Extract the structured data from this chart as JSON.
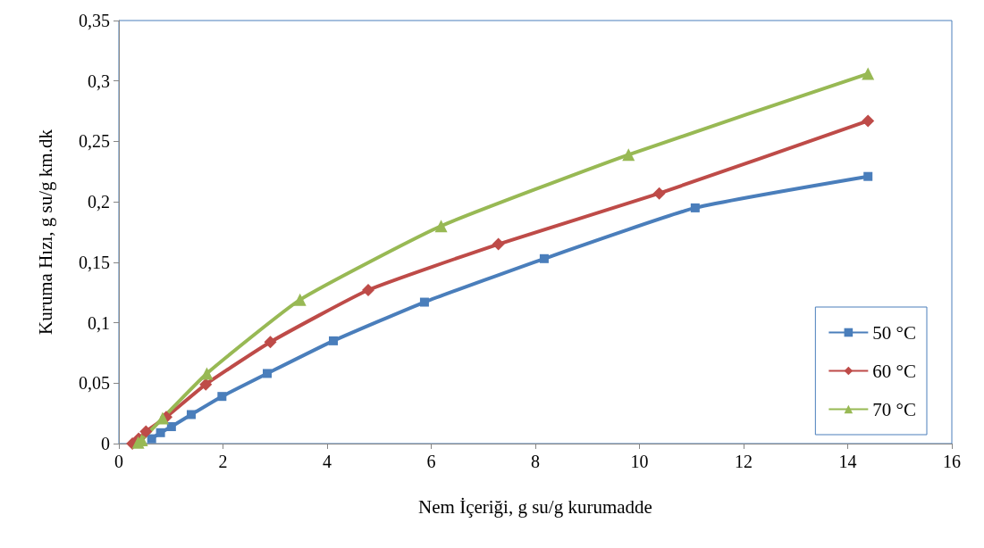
{
  "chart_data": {
    "type": "line",
    "xlabel": "Nem İçeriği, g su/g kurumadde",
    "ylabel": "Kuruma Hızı, g su/g km.dk",
    "xlim": [
      0,
      16
    ],
    "xticks": [
      0,
      2,
      4,
      6,
      8,
      10,
      12,
      14,
      16
    ],
    "ylim": [
      0,
      0.35
    ],
    "yticks": [
      {
        "value": 0,
        "label": "0"
      },
      {
        "value": 0.05,
        "label": "0,05"
      },
      {
        "value": 0.1,
        "label": "0,1"
      },
      {
        "value": 0.15,
        "label": "0,15"
      },
      {
        "value": 0.2,
        "label": "0,2"
      },
      {
        "value": 0.25,
        "label": "0,25"
      },
      {
        "value": 0.3,
        "label": "0,3"
      },
      {
        "value": 0.35,
        "label": "0,35"
      }
    ],
    "grid": false,
    "legend": "bottom right",
    "series": [
      {
        "name": "50 °C",
        "color": "#4a7ebb",
        "marker": "square",
        "x": [
          0.63,
          0.8,
          1.01,
          1.39,
          1.98,
          2.85,
          4.12,
          5.87,
          8.17,
          11.07,
          14.39
        ],
        "values": [
          0.004,
          0.009,
          0.014,
          0.024,
          0.039,
          0.058,
          0.085,
          0.117,
          0.153,
          0.195,
          0.221
        ]
      },
      {
        "name": "60 °C",
        "color": "#be4b48",
        "marker": "diamond",
        "x": [
          0.26,
          0.38,
          0.52,
          0.91,
          1.67,
          2.91,
          4.79,
          7.29,
          10.38,
          14.39
        ],
        "values": [
          0,
          0.004,
          0.01,
          0.022,
          0.049,
          0.084,
          0.127,
          0.165,
          0.207,
          0.267
        ]
      },
      {
        "name": "70 °C",
        "color": "#98b954",
        "marker": "triangle",
        "x": [
          0.37,
          0.44,
          0.84,
          1.69,
          3.48,
          6.19,
          9.79,
          14.39
        ],
        "values": [
          0.001,
          0.003,
          0.021,
          0.058,
          0.119,
          0.18,
          0.239,
          0.306
        ]
      }
    ]
  }
}
